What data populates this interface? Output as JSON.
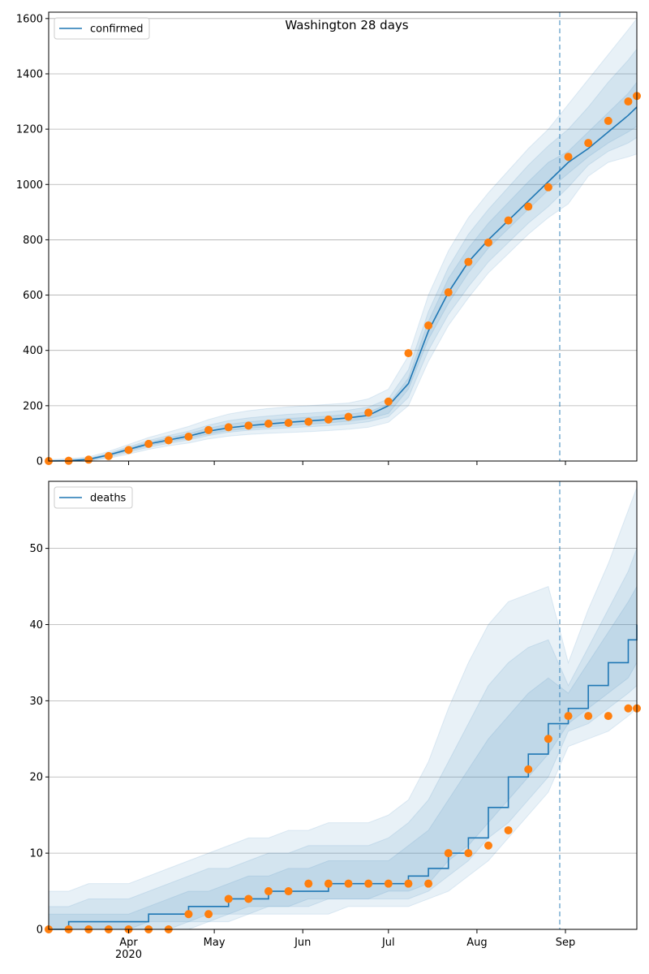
{
  "chart_data": [
    {
      "type": "line",
      "title": "Washington 28 days",
      "x": [
        "2020-03-04",
        "2020-03-11",
        "2020-03-18",
        "2020-03-25",
        "2020-04-01",
        "2020-04-08",
        "2020-04-15",
        "2020-04-22",
        "2020-04-29",
        "2020-05-06",
        "2020-05-13",
        "2020-05-20",
        "2020-05-27",
        "2020-06-03",
        "2020-06-10",
        "2020-06-17",
        "2020-06-24",
        "2020-07-01",
        "2020-07-08",
        "2020-07-15",
        "2020-07-22",
        "2020-07-29",
        "2020-08-05",
        "2020-08-12",
        "2020-08-19",
        "2020-08-26",
        "2020-09-02",
        "2020-09-09",
        "2020-09-16",
        "2020-09-23",
        "2020-09-26"
      ],
      "series": [
        {
          "name": "confirmed",
          "color": "#1f77b4",
          "values": [
            0,
            1,
            6,
            22,
            42,
            62,
            76,
            90,
            108,
            120,
            128,
            134,
            140,
            145,
            150,
            156,
            165,
            200,
            280,
            470,
            610,
            720,
            800,
            870,
            940,
            1010,
            1080,
            1130,
            1190,
            1250,
            1280
          ]
        },
        {
          "color": "#ff7f0e",
          "marker": "o",
          "values": [
            0,
            1,
            5,
            18,
            40,
            62,
            75,
            88,
            112,
            122,
            128,
            135,
            138,
            142,
            150,
            160,
            175,
            215,
            390,
            490,
            610,
            720,
            790,
            870,
            920,
            990,
            1100,
            1150,
            1230,
            1300,
            1320
          ]
        }
      ],
      "bands": [
        {
          "lower": [
            0,
            0,
            0,
            10,
            25,
            42,
            55,
            65,
            80,
            90,
            96,
            100,
            103,
            106,
            110,
            115,
            122,
            140,
            200,
            360,
            490,
            590,
            680,
            750,
            820,
            880,
            930,
            1030,
            1080,
            1100,
            1110
          ],
          "upper": [
            5,
            8,
            15,
            35,
            60,
            85,
            105,
            125,
            150,
            170,
            182,
            190,
            196,
            200,
            205,
            210,
            225,
            260,
            380,
            600,
            760,
            880,
            970,
            1050,
            1130,
            1200,
            1290,
            1380,
            1470,
            1560,
            1600
          ]
        },
        {
          "lower": [
            0,
            0,
            2,
            14,
            32,
            50,
            64,
            76,
            92,
            104,
            111,
            116,
            120,
            124,
            128,
            133,
            142,
            160,
            230,
            400,
            530,
            630,
            720,
            790,
            860,
            920,
            990,
            1070,
            1120,
            1150,
            1170
          ],
          "upper": [
            3,
            5,
            10,
            28,
            52,
            74,
            92,
            108,
            130,
            146,
            156,
            163,
            169,
            173,
            178,
            184,
            195,
            225,
            330,
            540,
            700,
            820,
            910,
            990,
            1070,
            1140,
            1200,
            1280,
            1370,
            1450,
            1490
          ]
        },
        {
          "lower": [
            0,
            0,
            4,
            18,
            37,
            56,
            70,
            82,
            98,
            110,
            118,
            124,
            128,
            133,
            138,
            144,
            153,
            172,
            260,
            440,
            570,
            680,
            770,
            840,
            910,
            980,
            1040,
            1100,
            1150,
            1190,
            1210
          ],
          "upper": [
            1,
            3,
            8,
            25,
            47,
            68,
            84,
            99,
            119,
            133,
            142,
            148,
            154,
            158,
            163,
            169,
            178,
            205,
            300,
            505,
            660,
            770,
            860,
            935,
            1010,
            1080,
            1120,
            1190,
            1260,
            1330,
            1370
          ]
        }
      ],
      "band_color": "#1f77b4",
      "xlim": [
        "2020-03-04",
        "2020-09-26"
      ],
      "xticks": [
        "2020-04-01",
        "2020-05-01",
        "2020-06-01",
        "2020-07-01",
        "2020-08-01",
        "2020-09-01"
      ],
      "ylim": [
        0,
        1623
      ],
      "yticks": [
        0,
        200,
        400,
        600,
        800,
        1000,
        1200,
        1400,
        1600
      ],
      "grid": true,
      "legend": "upper left",
      "vline": "2020-08-30"
    },
    {
      "type": "line",
      "x": [
        "2020-03-04",
        "2020-03-11",
        "2020-03-18",
        "2020-03-25",
        "2020-04-01",
        "2020-04-08",
        "2020-04-15",
        "2020-04-22",
        "2020-04-29",
        "2020-05-06",
        "2020-05-13",
        "2020-05-20",
        "2020-05-27",
        "2020-06-03",
        "2020-06-10",
        "2020-06-17",
        "2020-06-24",
        "2020-07-01",
        "2020-07-08",
        "2020-07-15",
        "2020-07-22",
        "2020-07-29",
        "2020-08-05",
        "2020-08-12",
        "2020-08-19",
        "2020-08-26",
        "2020-09-02",
        "2020-09-09",
        "2020-09-16",
        "2020-09-23",
        "2020-09-26"
      ],
      "series": [
        {
          "name": "deaths",
          "color": "#1f77b4",
          "step": "post",
          "values": [
            0,
            1,
            1,
            1,
            1,
            2,
            2,
            3,
            3,
            4,
            4,
            5,
            5,
            5,
            6,
            6,
            6,
            6,
            7,
            8,
            10,
            12,
            16,
            20,
            23,
            27,
            29,
            32,
            35,
            38,
            40
          ]
        },
        {
          "color": "#ff7f0e",
          "marker": "o",
          "values": [
            0,
            0,
            0,
            0,
            0,
            0,
            0,
            2,
            2,
            4,
            4,
            5,
            5,
            6,
            6,
            6,
            6,
            6,
            6,
            6,
            10,
            10,
            11,
            13,
            21,
            25,
            28,
            28,
            28,
            29,
            29
          ]
        }
      ],
      "bands": [
        {
          "lower": [
            0,
            0,
            0,
            0,
            0,
            0,
            0,
            0,
            1,
            1,
            2,
            2,
            2,
            2,
            2,
            3,
            3,
            3,
            3,
            4,
            5,
            7,
            9,
            12,
            15,
            18,
            24,
            25,
            26,
            28,
            29
          ],
          "upper": [
            5,
            5,
            6,
            6,
            6,
            7,
            8,
            9,
            10,
            11,
            12,
            12,
            13,
            13,
            14,
            14,
            14,
            15,
            17,
            22,
            29,
            35,
            40,
            43,
            44,
            45,
            35,
            42,
            48,
            55,
            58
          ]
        },
        {
          "lower": [
            0,
            0,
            0,
            0,
            0,
            0,
            0,
            1,
            1,
            2,
            2,
            3,
            3,
            3,
            4,
            4,
            4,
            4,
            4,
            5,
            7,
            9,
            12,
            14,
            17,
            20,
            26,
            27,
            29,
            31,
            32
          ],
          "upper": [
            3,
            3,
            4,
            4,
            4,
            5,
            6,
            7,
            8,
            8,
            9,
            10,
            10,
            11,
            11,
            11,
            11,
            12,
            14,
            17,
            22,
            27,
            32,
            35,
            37,
            38,
            32,
            37,
            42,
            47,
            50
          ]
        },
        {
          "lower": [
            0,
            0,
            0,
            0,
            0,
            1,
            1,
            1,
            2,
            2,
            3,
            3,
            3,
            4,
            4,
            4,
            4,
            5,
            5,
            6,
            9,
            11,
            14,
            17,
            20,
            23,
            27,
            29,
            31,
            33,
            35
          ],
          "upper": [
            2,
            2,
            2,
            2,
            2,
            3,
            4,
            5,
            5,
            6,
            7,
            7,
            8,
            8,
            9,
            9,
            9,
            9,
            11,
            13,
            17,
            21,
            25,
            28,
            31,
            33,
            31,
            35,
            39,
            43,
            45
          ]
        }
      ],
      "band_color": "#1f77b4",
      "xlim": [
        "2020-03-04",
        "2020-09-26"
      ],
      "xticks": [
        {
          "value": "2020-04-01",
          "label": "Apr\n2020"
        },
        {
          "value": "2020-05-01",
          "label": "May"
        },
        {
          "value": "2020-06-01",
          "label": "Jun"
        },
        {
          "value": "2020-07-01",
          "label": "Jul"
        },
        {
          "value": "2020-08-01",
          "label": "Aug"
        },
        {
          "value": "2020-09-01",
          "label": "Sep"
        }
      ],
      "ylim": [
        0,
        58.8
      ],
      "yticks": [
        0,
        10,
        20,
        30,
        40,
        50
      ],
      "grid": true,
      "legend": "upper left",
      "vline": "2020-08-30"
    }
  ]
}
